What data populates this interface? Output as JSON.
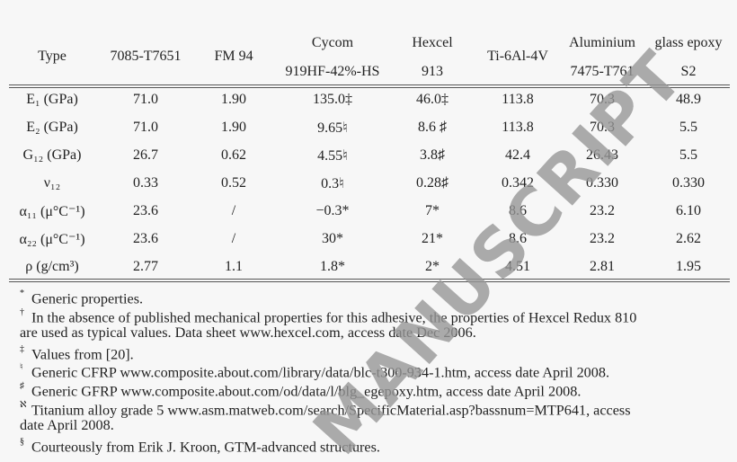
{
  "table": {
    "headers": [
      {
        "line1": "Type",
        "line2": ""
      },
      {
        "line1": "7085-T7651",
        "line2": ""
      },
      {
        "line1": "FM 94",
        "line2": ""
      },
      {
        "line1": "Cycom",
        "line2": "919HF-42%-HS"
      },
      {
        "line1": "Hexcel",
        "line2": "913"
      },
      {
        "line1": "Ti-6Al-4V",
        "line2": ""
      },
      {
        "line1": "Aluminium",
        "line2": "7475-T761"
      },
      {
        "line1": "glass epoxy",
        "line2": "S2"
      }
    ],
    "rows": [
      {
        "label": "E₁ (GPa)",
        "cells": [
          "71.0",
          "1.90",
          "135.0‡",
          "46.0‡",
          "113.8",
          "70.3",
          "48.9"
        ]
      },
      {
        "label": "E₂ (GPa)",
        "cells": [
          "71.0",
          "1.90",
          "9.65♮",
          "8.6 ♯",
          "113.8",
          "70.3",
          "5.5"
        ]
      },
      {
        "label": "G₁₂ (GPa)",
        "cells": [
          "26.7",
          "0.62",
          "4.55♮",
          "3.8♯",
          "42.4",
          "26.43",
          "5.5"
        ]
      },
      {
        "label": "ν₁₂",
        "cells": [
          "0.33",
          "0.52",
          "0.3♮",
          "0.28♯",
          "0.342",
          "0.330",
          "0.330"
        ]
      },
      {
        "label": "α₁₁ (μ°C⁻¹)",
        "cells": [
          "23.6",
          "/",
          "−0.3*",
          "7*",
          "8.6",
          "23.2",
          "6.10"
        ]
      },
      {
        "label": "α₂₂ (μ°C⁻¹)",
        "cells": [
          "23.6",
          "/",
          "30*",
          "21*",
          "8.6",
          "23.2",
          "2.62"
        ]
      },
      {
        "label": "ρ (g/cm³)",
        "cells": [
          "2.77",
          "1.1",
          "1.8*",
          "2*",
          "4.51",
          "2.81",
          "1.95"
        ]
      }
    ]
  },
  "footnotes": [
    {
      "mark": "*",
      "lines": [
        "Generic properties."
      ]
    },
    {
      "mark": "†",
      "lines": [
        "In the absence of published mechanical properties for this adhesive, the properties of Hexcel Redux 810",
        "are used as typical values. Data sheet www.hexcel.com, access date Dec 2006."
      ]
    },
    {
      "mark": "‡",
      "lines": [
        "Values from [20]."
      ]
    },
    {
      "mark": "♮",
      "lines": [
        "Generic CFRP www.composite.about.com/library/data/blc-t300-934-1.htm, access date April 2008."
      ]
    },
    {
      "mark": "♯",
      "lines": [
        "Generic GFRP www.composite.about.com/od/data/l/blg_egepoxy.htm, access date April 2008."
      ]
    },
    {
      "mark": "ℵ",
      "lines": [
        "Titanium alloy grade 5 www.asm.matweb.com/search/SpecificMaterial.asp?bassnum=MTP641, access",
        "date April 2008."
      ]
    },
    {
      "mark": "§",
      "lines": [
        "Courteously from Erik J. Kroon, GTM-advanced structures."
      ]
    }
  ],
  "watermark": "MANUSCRIPT"
}
